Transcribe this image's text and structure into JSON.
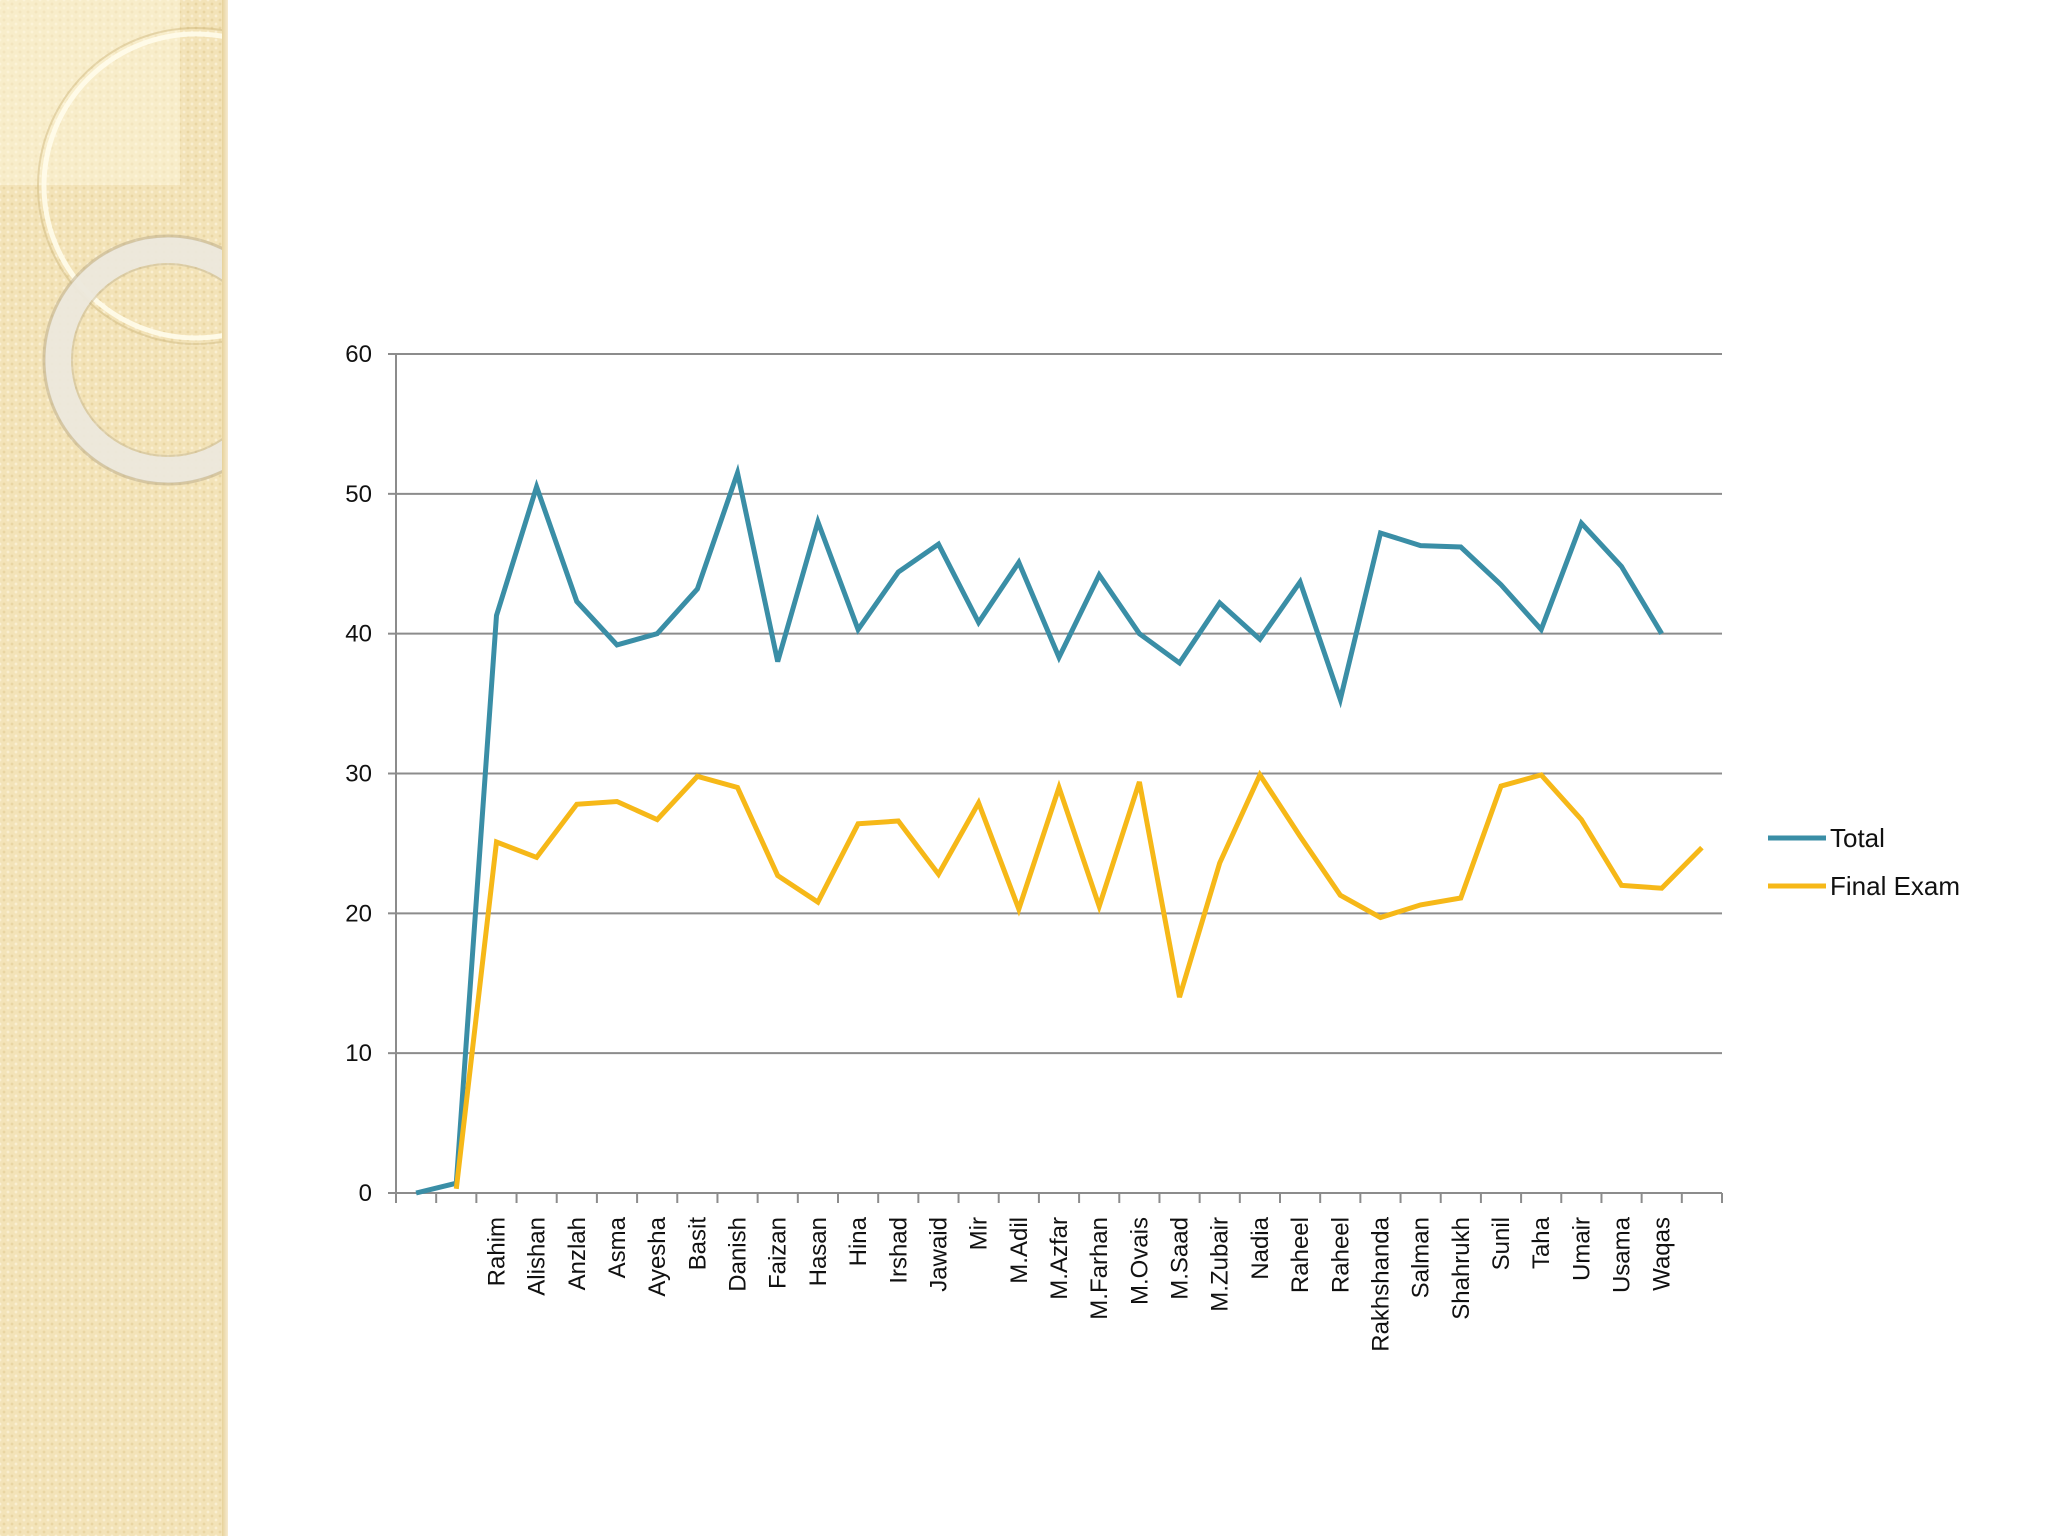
{
  "chart_data": {
    "type": "line",
    "title": "",
    "xlabel": "",
    "ylabel": "",
    "ylim": [
      0,
      60
    ],
    "yticks": [
      0,
      10,
      20,
      30,
      40,
      50,
      60
    ],
    "grid": true,
    "legend_position": "right",
    "categories": [
      "",
      "",
      "Rahim",
      "Alishan",
      "Anzlah",
      "Asma",
      "Ayesha",
      "Basit",
      "Danish",
      "Faizan",
      "Hasan",
      "Hina",
      "Irshad",
      "Jawaid",
      "Mir",
      "M.Adil",
      "M.Azfar",
      "M.Farhan",
      "M.Ovais",
      "M.Saad",
      "M.Zubair",
      "Nadia",
      "Raheel",
      "Raheel",
      "Rakhshanda",
      "Salman",
      "Shahrukh",
      "Sunil",
      "Taha",
      "Umair",
      "Usama",
      "Waqas",
      ""
    ],
    "series": [
      {
        "name": "Total",
        "color": "#3a8ea6",
        "values": [
          0,
          0.7,
          41.3,
          50.5,
          42.3,
          39.2,
          40,
          43.2,
          51.5,
          38,
          48,
          40.3,
          44.4,
          46.4,
          40.8,
          45.1,
          38.3,
          44.2,
          40,
          37.9,
          42.2,
          39.6,
          43.7,
          35.3,
          47.2,
          46.3,
          46.2,
          43.5,
          40.3,
          47.9,
          44.8,
          40,
          null
        ]
      },
      {
        "name": "Final Exam",
        "color": "#f6b818",
        "values": [
          null,
          0.3,
          25.1,
          24,
          27.8,
          28,
          26.7,
          29.8,
          29,
          22.7,
          20.8,
          26.4,
          26.6,
          22.8,
          27.9,
          20.3,
          29,
          20.5,
          29.4,
          14,
          23.6,
          29.9,
          25.5,
          21.3,
          19.7,
          20.6,
          21.1,
          29.1,
          29.9,
          26.7,
          22,
          21.8,
          24.7
        ]
      }
    ]
  }
}
